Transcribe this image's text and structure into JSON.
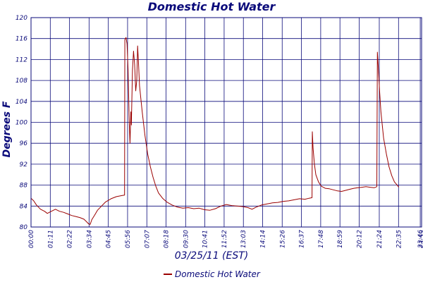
{
  "chart_data": {
    "type": "line",
    "title": "Domestic Hot Water",
    "xlabel": "03/25/11 (EST)",
    "ylabel": "Degrees F",
    "ylim": [
      80,
      120
    ],
    "yticks": [
      80,
      84,
      88,
      92,
      96,
      100,
      104,
      108,
      112,
      116,
      120
    ],
    "xlim": [
      0,
      1440
    ],
    "xticks": [
      {
        "x": 0,
        "label": "00:00"
      },
      {
        "x": 71,
        "label": "01:11"
      },
      {
        "x": 142,
        "label": "02:22"
      },
      {
        "x": 214,
        "label": "03:34"
      },
      {
        "x": 285,
        "label": "04:45"
      },
      {
        "x": 356,
        "label": "05:56"
      },
      {
        "x": 427,
        "label": "07:07"
      },
      {
        "x": 498,
        "label": "08:18"
      },
      {
        "x": 570,
        "label": "09:30"
      },
      {
        "x": 641,
        "label": "10:41"
      },
      {
        "x": 712,
        "label": "11:52"
      },
      {
        "x": 783,
        "label": "13:03"
      },
      {
        "x": 854,
        "label": "14:14"
      },
      {
        "x": 926,
        "label": "15:26"
      },
      {
        "x": 997,
        "label": "16:37"
      },
      {
        "x": 1068,
        "label": "17:48"
      },
      {
        "x": 1139,
        "label": "18:59"
      },
      {
        "x": 1210,
        "label": "20:12"
      },
      {
        "x": 1284,
        "label": "21:24"
      },
      {
        "x": 1355,
        "label": "22:35"
      },
      {
        "x": 1435,
        "label": "23:46"
      },
      {
        "x": 1440,
        "label": "23:59"
      }
    ],
    "grid": true,
    "legend": "bottom-center",
    "series": [
      {
        "name": "Domestic Hot Water",
        "color": "#9b0000",
        "points": [
          [
            0,
            85.5
          ],
          [
            10,
            85.0
          ],
          [
            20,
            84.2
          ],
          [
            35,
            83.4
          ],
          [
            50,
            83.0
          ],
          [
            60,
            82.6
          ],
          [
            75,
            83.0
          ],
          [
            90,
            83.4
          ],
          [
            105,
            83.0
          ],
          [
            120,
            82.8
          ],
          [
            135,
            82.5
          ],
          [
            150,
            82.2
          ],
          [
            165,
            82.0
          ],
          [
            180,
            81.8
          ],
          [
            195,
            81.5
          ],
          [
            205,
            81.0
          ],
          [
            212,
            80.6
          ],
          [
            218,
            80.5
          ],
          [
            224,
            81.4
          ],
          [
            235,
            82.3
          ],
          [
            245,
            83.2
          ],
          [
            260,
            84.0
          ],
          [
            275,
            84.8
          ],
          [
            295,
            85.4
          ],
          [
            315,
            85.8
          ],
          [
            335,
            86.0
          ],
          [
            345,
            86.1
          ],
          [
            346,
            115.8
          ],
          [
            350,
            116.2
          ],
          [
            354,
            115.0
          ],
          [
            358,
            110.0
          ],
          [
            362,
            100.0
          ],
          [
            365,
            96.0
          ],
          [
            368,
            102.0
          ],
          [
            370,
            99.5
          ],
          [
            374,
            110.0
          ],
          [
            378,
            113.6
          ],
          [
            382,
            111.0
          ],
          [
            386,
            106.0
          ],
          [
            390,
            108.0
          ],
          [
            393,
            114.6
          ],
          [
            396,
            111.5
          ],
          [
            400,
            107.0
          ],
          [
            410,
            102.0
          ],
          [
            420,
            97.5
          ],
          [
            430,
            94.0
          ],
          [
            440,
            91.5
          ],
          [
            450,
            89.5
          ],
          [
            460,
            87.8
          ],
          [
            470,
            86.5
          ],
          [
            485,
            85.5
          ],
          [
            500,
            84.8
          ],
          [
            520,
            84.2
          ],
          [
            540,
            83.8
          ],
          [
            560,
            83.6
          ],
          [
            580,
            83.7
          ],
          [
            600,
            83.5
          ],
          [
            620,
            83.6
          ],
          [
            640,
            83.3
          ],
          [
            660,
            83.2
          ],
          [
            680,
            83.5
          ],
          [
            700,
            84.0
          ],
          [
            720,
            84.3
          ],
          [
            740,
            84.1
          ],
          [
            760,
            84.0
          ],
          [
            780,
            83.9
          ],
          [
            800,
            83.7
          ],
          [
            815,
            83.4
          ],
          [
            830,
            83.8
          ],
          [
            850,
            84.2
          ],
          [
            870,
            84.4
          ],
          [
            890,
            84.6
          ],
          [
            910,
            84.7
          ],
          [
            930,
            84.9
          ],
          [
            950,
            85.0
          ],
          [
            970,
            85.2
          ],
          [
            990,
            85.4
          ],
          [
            1010,
            85.3
          ],
          [
            1025,
            85.5
          ],
          [
            1036,
            85.6
          ],
          [
            1037,
            98.2
          ],
          [
            1040,
            95.0
          ],
          [
            1045,
            92.0
          ],
          [
            1050,
            90.0
          ],
          [
            1060,
            88.6
          ],
          [
            1070,
            87.8
          ],
          [
            1085,
            87.4
          ],
          [
            1100,
            87.3
          ],
          [
            1115,
            87.1
          ],
          [
            1130,
            86.9
          ],
          [
            1145,
            86.8
          ],
          [
            1160,
            87.0
          ],
          [
            1175,
            87.2
          ],
          [
            1190,
            87.4
          ],
          [
            1205,
            87.5
          ],
          [
            1220,
            87.6
          ],
          [
            1235,
            87.7
          ],
          [
            1250,
            87.6
          ],
          [
            1265,
            87.5
          ],
          [
            1275,
            87.7
          ],
          [
            1277,
            113.4
          ],
          [
            1280,
            111.0
          ],
          [
            1285,
            106.0
          ],
          [
            1290,
            102.0
          ],
          [
            1300,
            97.0
          ],
          [
            1310,
            94.0
          ],
          [
            1320,
            91.5
          ],
          [
            1330,
            89.8
          ],
          [
            1340,
            88.6
          ],
          [
            1350,
            88.0
          ],
          [
            1356,
            87.6
          ]
        ]
      }
    ]
  }
}
